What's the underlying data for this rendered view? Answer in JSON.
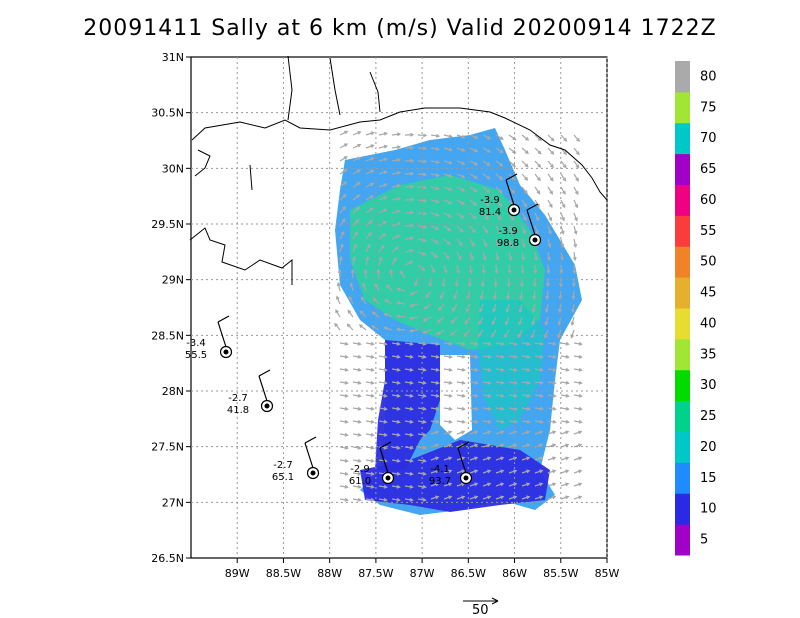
{
  "title": "20091411 Sally at 6 km (m/s) Valid 20200914 1722Z",
  "map": {
    "lon_range": [
      -89.5,
      -85.0
    ],
    "lat_range": [
      26.5,
      31.0
    ],
    "x_ticks": [
      "89W",
      "88.5W",
      "88W",
      "87.5W",
      "87W",
      "86.5W",
      "86W",
      "85.5W",
      "85W"
    ],
    "y_ticks": [
      "26.5N",
      "27N",
      "27.5N",
      "28N",
      "28.5N",
      "29N",
      "29.5N",
      "30N",
      "30.5N",
      "31N"
    ],
    "grid": true
  },
  "colorbar": {
    "labels": [
      "5",
      "10",
      "15",
      "20",
      "25",
      "30",
      "35",
      "40",
      "45",
      "50",
      "55",
      "60",
      "65",
      "70",
      "75",
      "80"
    ],
    "colors": [
      "#a000c8",
      "#2a2ae6",
      "#1e8cff",
      "#00c8c8",
      "#00d28c",
      "#00dc00",
      "#a0e632",
      "#e6dc32",
      "#e6af2d",
      "#f08228",
      "#fa3c3c",
      "#f00082",
      "#a000c8",
      "#00c8c8",
      "#a0e632",
      "#aaaaaa"
    ]
  },
  "stations": [
    {
      "temp": "-3.9",
      "speed": "81.4"
    },
    {
      "temp": "-3.9",
      "speed": "98.8"
    },
    {
      "temp": "-3.4",
      "speed": "55.5"
    },
    {
      "temp": "-2.7",
      "speed": "41.8"
    },
    {
      "temp": "-2.7",
      "speed": "65.1"
    },
    {
      "temp": "-2.9",
      "speed": "61.0"
    },
    {
      "temp": "-4.1",
      "speed": "93.7"
    }
  ],
  "reference_vector": {
    "label": "50"
  }
}
